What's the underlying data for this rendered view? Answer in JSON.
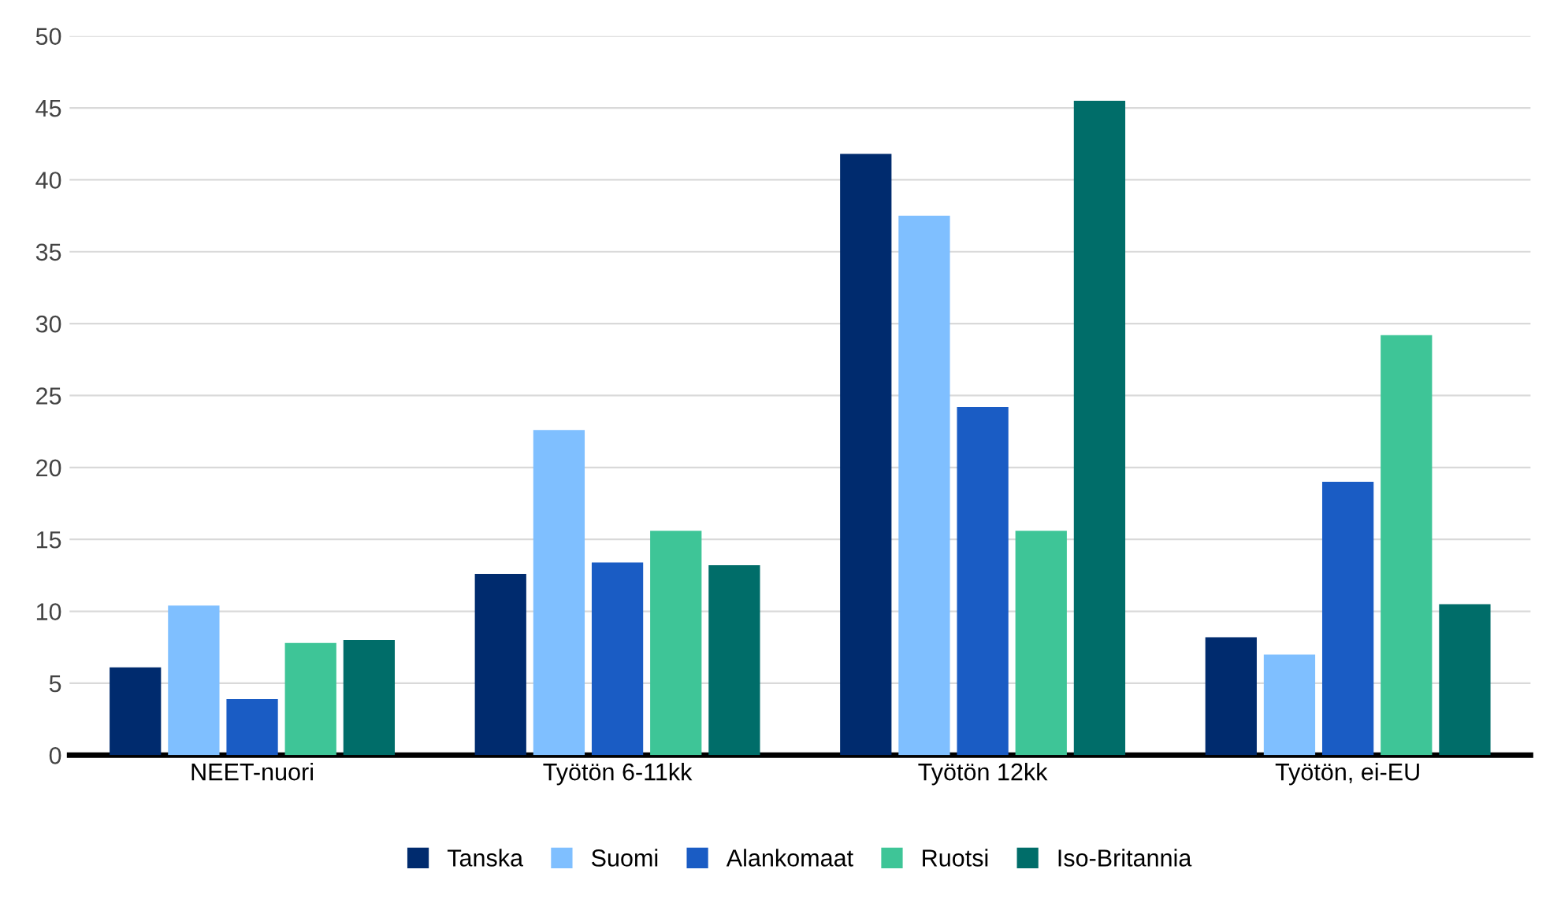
{
  "chart_data": {
    "type": "bar",
    "categories": [
      "NEET-nuori",
      "Työtön 6-11kk",
      "Työtön 12kk",
      "Työtön, ei-EU"
    ],
    "series": [
      {
        "name": "Tanska",
        "color": "#002b6e",
        "values": [
          6.1,
          12.6,
          41.8,
          8.2
        ]
      },
      {
        "name": "Suomi",
        "color": "#7fbfff",
        "values": [
          10.4,
          22.6,
          37.5,
          7.0
        ]
      },
      {
        "name": "Alankomaat",
        "color": "#1a5cc4",
        "values": [
          3.9,
          13.4,
          24.2,
          19.0
        ]
      },
      {
        "name": "Ruotsi",
        "color": "#3ec597",
        "values": [
          7.8,
          15.6,
          15.6,
          29.2
        ]
      },
      {
        "name": "Iso-Britannia",
        "color": "#006d69",
        "values": [
          8.0,
          13.2,
          45.5,
          10.5
        ]
      }
    ],
    "ylim": [
      0,
      50
    ],
    "yticks": [
      0,
      5,
      10,
      15,
      20,
      25,
      30,
      35,
      40,
      45,
      50
    ],
    "grid": "y",
    "legend": "bottom"
  }
}
